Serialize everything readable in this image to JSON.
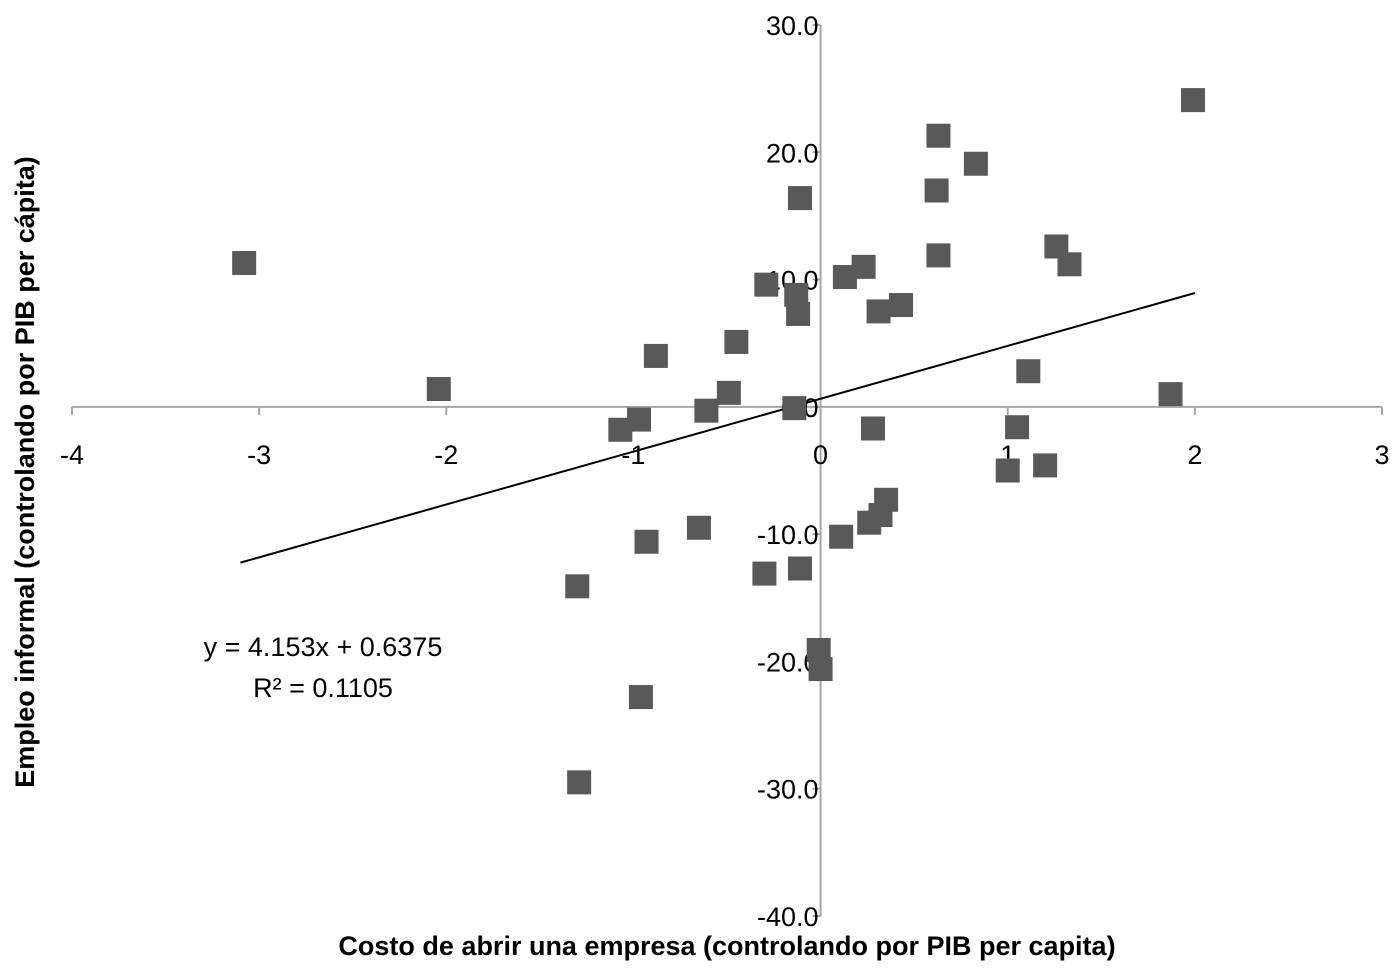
{
  "chart_data": {
    "type": "scatter",
    "title": "",
    "xlabel": "Costo de abrir una empresa (controlando por PIB per capita)",
    "ylabel": "Empleo informal (controlando por PIB per cápita)",
    "xlim": [
      -4,
      3
    ],
    "ylim": [
      -40,
      30
    ],
    "x_ticks": [
      -4,
      -3,
      -2,
      -1,
      0,
      1,
      2,
      3
    ],
    "x_tick_labels": [
      "-4",
      "-3",
      "-2",
      "-1",
      "0",
      "1",
      "2",
      "3"
    ],
    "y_ticks": [
      30,
      20,
      10,
      0,
      -10,
      -20,
      -30,
      -40
    ],
    "y_tick_labels": [
      "30.0",
      "20.0",
      "10.0",
      "0.0",
      "-10.0",
      "-20.0",
      "-30.0",
      "-40.0"
    ],
    "grid": false,
    "marker": "square",
    "marker_color": "#595959",
    "axis_color": "#a6a6a6",
    "trendline": {
      "slope": 4.153,
      "intercept": 0.6375,
      "x_range": [
        -3.1,
        2.0
      ],
      "color": "#000000"
    },
    "annotations": {
      "equation": "y = 4.153x + 0.6375",
      "r_squared": "R² = 0.1105"
    },
    "points": [
      {
        "x": -3.08,
        "y": 11.3
      },
      {
        "x": -2.04,
        "y": 1.4
      },
      {
        "x": -1.07,
        "y": -1.8
      },
      {
        "x": -0.97,
        "y": -1.0
      },
      {
        "x": -0.88,
        "y": 4.0
      },
      {
        "x": -0.61,
        "y": -0.3
      },
      {
        "x": -0.49,
        "y": 1.1
      },
      {
        "x": -0.45,
        "y": 5.1
      },
      {
        "x": -0.29,
        "y": 9.6
      },
      {
        "x": -0.13,
        "y": 8.8
      },
      {
        "x": -0.12,
        "y": 7.3
      },
      {
        "x": -0.11,
        "y": 16.4
      },
      {
        "x": -0.14,
        "y": -0.1
      },
      {
        "x": 0.13,
        "y": 10.2
      },
      {
        "x": 0.23,
        "y": 11.0
      },
      {
        "x": 0.31,
        "y": 7.5
      },
      {
        "x": 0.43,
        "y": 8.0
      },
      {
        "x": 0.62,
        "y": 17.0
      },
      {
        "x": 0.63,
        "y": 21.3
      },
      {
        "x": 0.63,
        "y": 11.9
      },
      {
        "x": 0.83,
        "y": 19.1
      },
      {
        "x": 1.11,
        "y": 2.8
      },
      {
        "x": 1.26,
        "y": 12.6
      },
      {
        "x": 1.33,
        "y": 11.2
      },
      {
        "x": 1.87,
        "y": 1.0
      },
      {
        "x": 1.99,
        "y": 24.1
      },
      {
        "x": 0.28,
        "y": -1.7
      },
      {
        "x": 1.05,
        "y": -1.6
      },
      {
        "x": 1.0,
        "y": -5.0
      },
      {
        "x": 1.2,
        "y": -4.6
      },
      {
        "x": -0.65,
        "y": -9.5
      },
      {
        "x": -0.93,
        "y": -10.6
      },
      {
        "x": -1.3,
        "y": -14.1
      },
      {
        "x": -0.3,
        "y": -13.1
      },
      {
        "x": -0.11,
        "y": -12.7
      },
      {
        "x": 0.11,
        "y": -10.2
      },
      {
        "x": 0.26,
        "y": -9.1
      },
      {
        "x": 0.32,
        "y": -8.5
      },
      {
        "x": 0.35,
        "y": -7.3
      },
      {
        "x": -0.01,
        "y": -19.1
      },
      {
        "x": 0.0,
        "y": -20.6
      },
      {
        "x": -0.96,
        "y": -22.8
      },
      {
        "x": -1.29,
        "y": -29.5
      }
    ]
  }
}
